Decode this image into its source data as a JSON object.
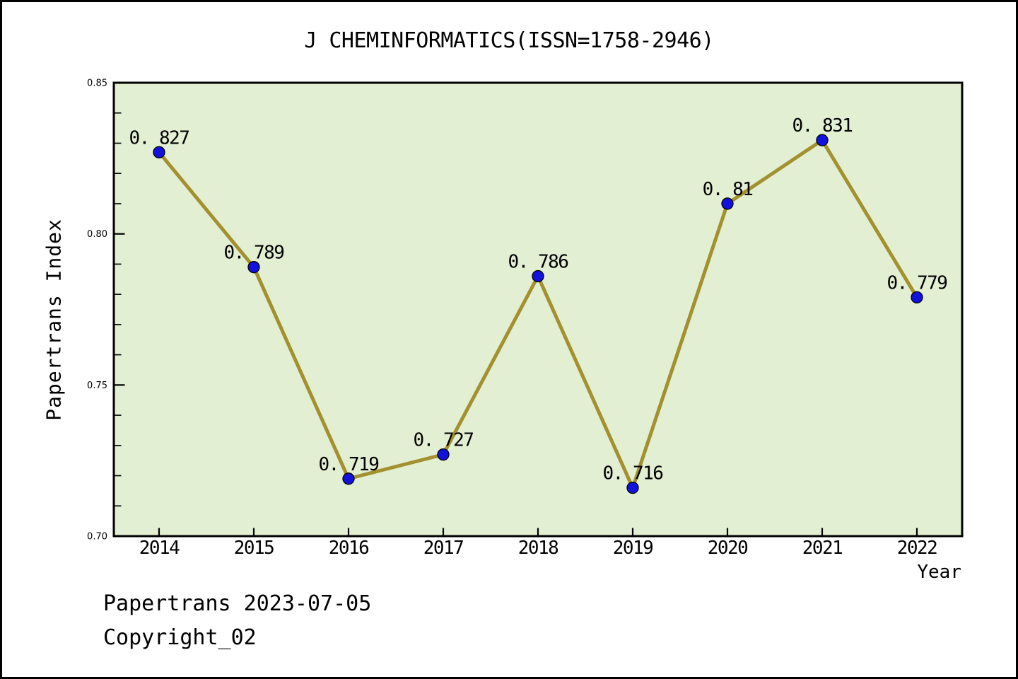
{
  "page": {
    "footer_line1": "Papertrans 2023-07-05",
    "footer_line2": "Copyright_02",
    "background": "#ffffff",
    "border_color": "#000000"
  },
  "chart_data": {
    "type": "line",
    "title": "J CHEMINFORMATICS(ISSN=1758-2946)",
    "xlabel": "Year",
    "ylabel": "Papertrans Index",
    "x_labels": [
      "2014",
      "2015",
      "2016",
      "2017",
      "2018",
      "2019",
      "2020",
      "2021",
      "2022"
    ],
    "series": [
      {
        "name": "Papertrans Index",
        "values": [
          0.827,
          0.789,
          0.719,
          0.727,
          0.786,
          0.716,
          0.81,
          0.831,
          0.779
        ]
      }
    ],
    "point_labels": [
      "0. 827",
      "0. 789",
      "0. 719",
      "0. 727",
      "0. 786",
      "0. 716",
      "0. 81",
      "0. 831",
      "0. 779"
    ],
    "ylim": [
      0.7,
      0.85
    ],
    "yticks": [
      0.7,
      0.75,
      0.8,
      0.85
    ],
    "ytick_labels": [
      "0.70",
      "0.75",
      "0.80",
      "0.85"
    ],
    "y_minor_tick_step": 0.01,
    "grid": false,
    "legend": "none",
    "marker": "circle",
    "colors": {
      "line": "#a3902e",
      "marker_fill": "#1212dc",
      "marker_edge": "#000000",
      "plot_background": "#e2efd2",
      "axis": "#000000",
      "text": "#000000"
    }
  }
}
